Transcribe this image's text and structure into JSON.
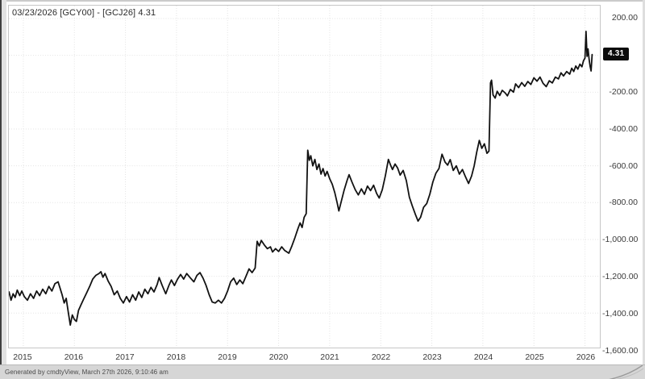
{
  "window": {
    "header_label": "03/23/2026 [GCY00] - [GCJ26] 4.31",
    "footer_text": "Generated by cmdtyView, March 27th 2026, 9:10:46 am"
  },
  "last_price_badge": {
    "text": "4.31",
    "bg": "#0b0b0b",
    "fg": "#ffffff"
  },
  "colors": {
    "line": "#121212",
    "grid": "#e3e3e3",
    "plot_border": "#c6c6c6",
    "axis_text": "#3a3a3a",
    "footer_bg": "#d6d6d6"
  },
  "chart_data": {
    "type": "line",
    "title": "03/23/2026 [GCY00] - [GCJ26] 4.31",
    "series_name": "[GCY00] - [GCJ26] spread",
    "legend": "none",
    "grid": "dotted",
    "x_domain": [
      2014.717,
      2026.291
    ],
    "y_domain": [
      -1587,
      270
    ],
    "x_ticks": [
      {
        "label": "2015",
        "value": 2015
      },
      {
        "label": "2016",
        "value": 2016
      },
      {
        "label": "2017",
        "value": 2017
      },
      {
        "label": "2018",
        "value": 2018
      },
      {
        "label": "2019",
        "value": 2019
      },
      {
        "label": "2020",
        "value": 2020
      },
      {
        "label": "2021",
        "value": 2021
      },
      {
        "label": "2022",
        "value": 2022
      },
      {
        "label": "2023",
        "value": 2023
      },
      {
        "label": "2024",
        "value": 2024
      },
      {
        "label": "2025",
        "value": 2025
      },
      {
        "label": "2026",
        "value": 2026
      }
    ],
    "y_ticks": [
      {
        "label": "200.00",
        "value": 200
      },
      {
        "label": "-200.00",
        "value": -200
      },
      {
        "label": "-400.00",
        "value": -400
      },
      {
        "label": "-600.00",
        "value": -600
      },
      {
        "label": "-800.00",
        "value": -800
      },
      {
        "label": "-1,000.00",
        "value": -1000
      },
      {
        "label": "-1,200.00",
        "value": -1200
      },
      {
        "label": "-1,400.00",
        "value": -1400
      },
      {
        "label": "-1,600.00",
        "value": -1600
      }
    ],
    "grid_extra_levels": [
      0
    ],
    "last_date": "03/23/2026",
    "last_value": 4.31,
    "points": [
      [
        2014.72,
        -1285
      ],
      [
        2014.76,
        -1330
      ],
      [
        2014.8,
        -1295
      ],
      [
        2014.84,
        -1315
      ],
      [
        2014.88,
        -1275
      ],
      [
        2014.93,
        -1305
      ],
      [
        2014.97,
        -1280
      ],
      [
        2015.02,
        -1310
      ],
      [
        2015.08,
        -1330
      ],
      [
        2015.14,
        -1295
      ],
      [
        2015.2,
        -1320
      ],
      [
        2015.26,
        -1280
      ],
      [
        2015.32,
        -1305
      ],
      [
        2015.38,
        -1270
      ],
      [
        2015.44,
        -1295
      ],
      [
        2015.5,
        -1255
      ],
      [
        2015.56,
        -1280
      ],
      [
        2015.62,
        -1240
      ],
      [
        2015.68,
        -1230
      ],
      [
        2015.72,
        -1265
      ],
      [
        2015.76,
        -1300
      ],
      [
        2015.8,
        -1345
      ],
      [
        2015.84,
        -1320
      ],
      [
        2015.88,
        -1395
      ],
      [
        2015.92,
        -1465
      ],
      [
        2015.96,
        -1410
      ],
      [
        2016.0,
        -1435
      ],
      [
        2016.04,
        -1445
      ],
      [
        2016.08,
        -1385
      ],
      [
        2016.13,
        -1355
      ],
      [
        2016.18,
        -1325
      ],
      [
        2016.24,
        -1290
      ],
      [
        2016.3,
        -1255
      ],
      [
        2016.36,
        -1215
      ],
      [
        2016.42,
        -1195
      ],
      [
        2016.48,
        -1185
      ],
      [
        2016.52,
        -1175
      ],
      [
        2016.56,
        -1205
      ],
      [
        2016.6,
        -1185
      ],
      [
        2016.66,
        -1225
      ],
      [
        2016.72,
        -1255
      ],
      [
        2016.78,
        -1300
      ],
      [
        2016.84,
        -1280
      ],
      [
        2016.9,
        -1320
      ],
      [
        2016.96,
        -1345
      ],
      [
        2017.02,
        -1310
      ],
      [
        2017.08,
        -1340
      ],
      [
        2017.14,
        -1300
      ],
      [
        2017.2,
        -1330
      ],
      [
        2017.26,
        -1285
      ],
      [
        2017.32,
        -1315
      ],
      [
        2017.38,
        -1270
      ],
      [
        2017.44,
        -1295
      ],
      [
        2017.5,
        -1260
      ],
      [
        2017.56,
        -1285
      ],
      [
        2017.62,
        -1245
      ],
      [
        2017.66,
        -1207
      ],
      [
        2017.72,
        -1250
      ],
      [
        2017.79,
        -1295
      ],
      [
        2017.85,
        -1250
      ],
      [
        2017.9,
        -1220
      ],
      [
        2017.96,
        -1250
      ],
      [
        2018.02,
        -1215
      ],
      [
        2018.08,
        -1190
      ],
      [
        2018.14,
        -1215
      ],
      [
        2018.2,
        -1185
      ],
      [
        2018.26,
        -1205
      ],
      [
        2018.34,
        -1230
      ],
      [
        2018.4,
        -1195
      ],
      [
        2018.46,
        -1180
      ],
      [
        2018.52,
        -1210
      ],
      [
        2018.58,
        -1250
      ],
      [
        2018.64,
        -1300
      ],
      [
        2018.7,
        -1340
      ],
      [
        2018.76,
        -1345
      ],
      [
        2018.82,
        -1330
      ],
      [
        2018.88,
        -1345
      ],
      [
        2018.94,
        -1320
      ],
      [
        2019.0,
        -1280
      ],
      [
        2019.06,
        -1230
      ],
      [
        2019.12,
        -1210
      ],
      [
        2019.18,
        -1245
      ],
      [
        2019.24,
        -1220
      ],
      [
        2019.3,
        -1240
      ],
      [
        2019.36,
        -1200
      ],
      [
        2019.42,
        -1160
      ],
      [
        2019.48,
        -1180
      ],
      [
        2019.54,
        -1155
      ],
      [
        2019.58,
        -1010
      ],
      [
        2019.62,
        -1035
      ],
      [
        2019.66,
        -1005
      ],
      [
        2019.72,
        -1030
      ],
      [
        2019.78,
        -1050
      ],
      [
        2019.84,
        -1040
      ],
      [
        2019.88,
        -1068
      ],
      [
        2019.94,
        -1050
      ],
      [
        2020.0,
        -1065
      ],
      [
        2020.06,
        -1040
      ],
      [
        2020.12,
        -1060
      ],
      [
        2020.2,
        -1075
      ],
      [
        2020.26,
        -1035
      ],
      [
        2020.32,
        -990
      ],
      [
        2020.38,
        -940
      ],
      [
        2020.42,
        -910
      ],
      [
        2020.46,
        -935
      ],
      [
        2020.5,
        -880
      ],
      [
        2020.54,
        -860
      ],
      [
        2020.57,
        -515
      ],
      [
        2020.6,
        -570
      ],
      [
        2020.63,
        -545
      ],
      [
        2020.67,
        -600
      ],
      [
        2020.71,
        -565
      ],
      [
        2020.75,
        -620
      ],
      [
        2020.79,
        -590
      ],
      [
        2020.83,
        -645
      ],
      [
        2020.87,
        -615
      ],
      [
        2020.91,
        -655
      ],
      [
        2020.95,
        -630
      ],
      [
        2021.0,
        -670
      ],
      [
        2021.05,
        -700
      ],
      [
        2021.1,
        -745
      ],
      [
        2021.15,
        -805
      ],
      [
        2021.18,
        -845
      ],
      [
        2021.23,
        -790
      ],
      [
        2021.28,
        -735
      ],
      [
        2021.34,
        -680
      ],
      [
        2021.38,
        -648
      ],
      [
        2021.44,
        -690
      ],
      [
        2021.5,
        -730
      ],
      [
        2021.56,
        -758
      ],
      [
        2021.62,
        -725
      ],
      [
        2021.68,
        -755
      ],
      [
        2021.74,
        -710
      ],
      [
        2021.8,
        -735
      ],
      [
        2021.86,
        -705
      ],
      [
        2021.92,
        -750
      ],
      [
        2021.97,
        -775
      ],
      [
        2022.03,
        -730
      ],
      [
        2022.09,
        -655
      ],
      [
        2022.15,
        -565
      ],
      [
        2022.19,
        -595
      ],
      [
        2022.23,
        -620
      ],
      [
        2022.28,
        -590
      ],
      [
        2022.33,
        -612
      ],
      [
        2022.38,
        -650
      ],
      [
        2022.44,
        -625
      ],
      [
        2022.5,
        -680
      ],
      [
        2022.56,
        -770
      ],
      [
        2022.62,
        -820
      ],
      [
        2022.68,
        -865
      ],
      [
        2022.73,
        -900
      ],
      [
        2022.78,
        -880
      ],
      [
        2022.84,
        -825
      ],
      [
        2022.9,
        -805
      ],
      [
        2022.96,
        -755
      ],
      [
        2023.02,
        -688
      ],
      [
        2023.08,
        -640
      ],
      [
        2023.14,
        -615
      ],
      [
        2023.2,
        -537
      ],
      [
        2023.26,
        -580
      ],
      [
        2023.31,
        -596
      ],
      [
        2023.36,
        -566
      ],
      [
        2023.42,
        -625
      ],
      [
        2023.48,
        -600
      ],
      [
        2023.54,
        -645
      ],
      [
        2023.6,
        -620
      ],
      [
        2023.66,
        -660
      ],
      [
        2023.72,
        -696
      ],
      [
        2023.78,
        -655
      ],
      [
        2023.83,
        -600
      ],
      [
        2023.88,
        -525
      ],
      [
        2023.93,
        -462
      ],
      [
        2023.98,
        -505
      ],
      [
        2024.03,
        -480
      ],
      [
        2024.08,
        -532
      ],
      [
        2024.12,
        -520
      ],
      [
        2024.15,
        -150
      ],
      [
        2024.17,
        -135
      ],
      [
        2024.2,
        -215
      ],
      [
        2024.24,
        -232
      ],
      [
        2024.28,
        -195
      ],
      [
        2024.33,
        -218
      ],
      [
        2024.38,
        -190
      ],
      [
        2024.44,
        -205
      ],
      [
        2024.48,
        -220
      ],
      [
        2024.54,
        -185
      ],
      [
        2024.6,
        -200
      ],
      [
        2024.64,
        -155
      ],
      [
        2024.7,
        -175
      ],
      [
        2024.76,
        -148
      ],
      [
        2024.82,
        -168
      ],
      [
        2024.88,
        -142
      ],
      [
        2024.94,
        -158
      ],
      [
        2025.0,
        -122
      ],
      [
        2025.06,
        -140
      ],
      [
        2025.12,
        -118
      ],
      [
        2025.18,
        -152
      ],
      [
        2025.24,
        -170
      ],
      [
        2025.3,
        -138
      ],
      [
        2025.36,
        -150
      ],
      [
        2025.42,
        -118
      ],
      [
        2025.48,
        -128
      ],
      [
        2025.53,
        -95
      ],
      [
        2025.58,
        -112
      ],
      [
        2025.64,
        -88
      ],
      [
        2025.7,
        -102
      ],
      [
        2025.74,
        -70
      ],
      [
        2025.78,
        -88
      ],
      [
        2025.82,
        -58
      ],
      [
        2025.86,
        -75
      ],
      [
        2025.9,
        -48
      ],
      [
        2025.94,
        -62
      ],
      [
        2025.97,
        -30
      ],
      [
        2026.0,
        -15
      ],
      [
        2026.02,
        130
      ],
      [
        2026.04,
        -5
      ],
      [
        2026.06,
        35
      ],
      [
        2026.08,
        -20
      ],
      [
        2026.1,
        -60
      ],
      [
        2026.12,
        -85
      ],
      [
        2026.14,
        4.31
      ]
    ]
  }
}
